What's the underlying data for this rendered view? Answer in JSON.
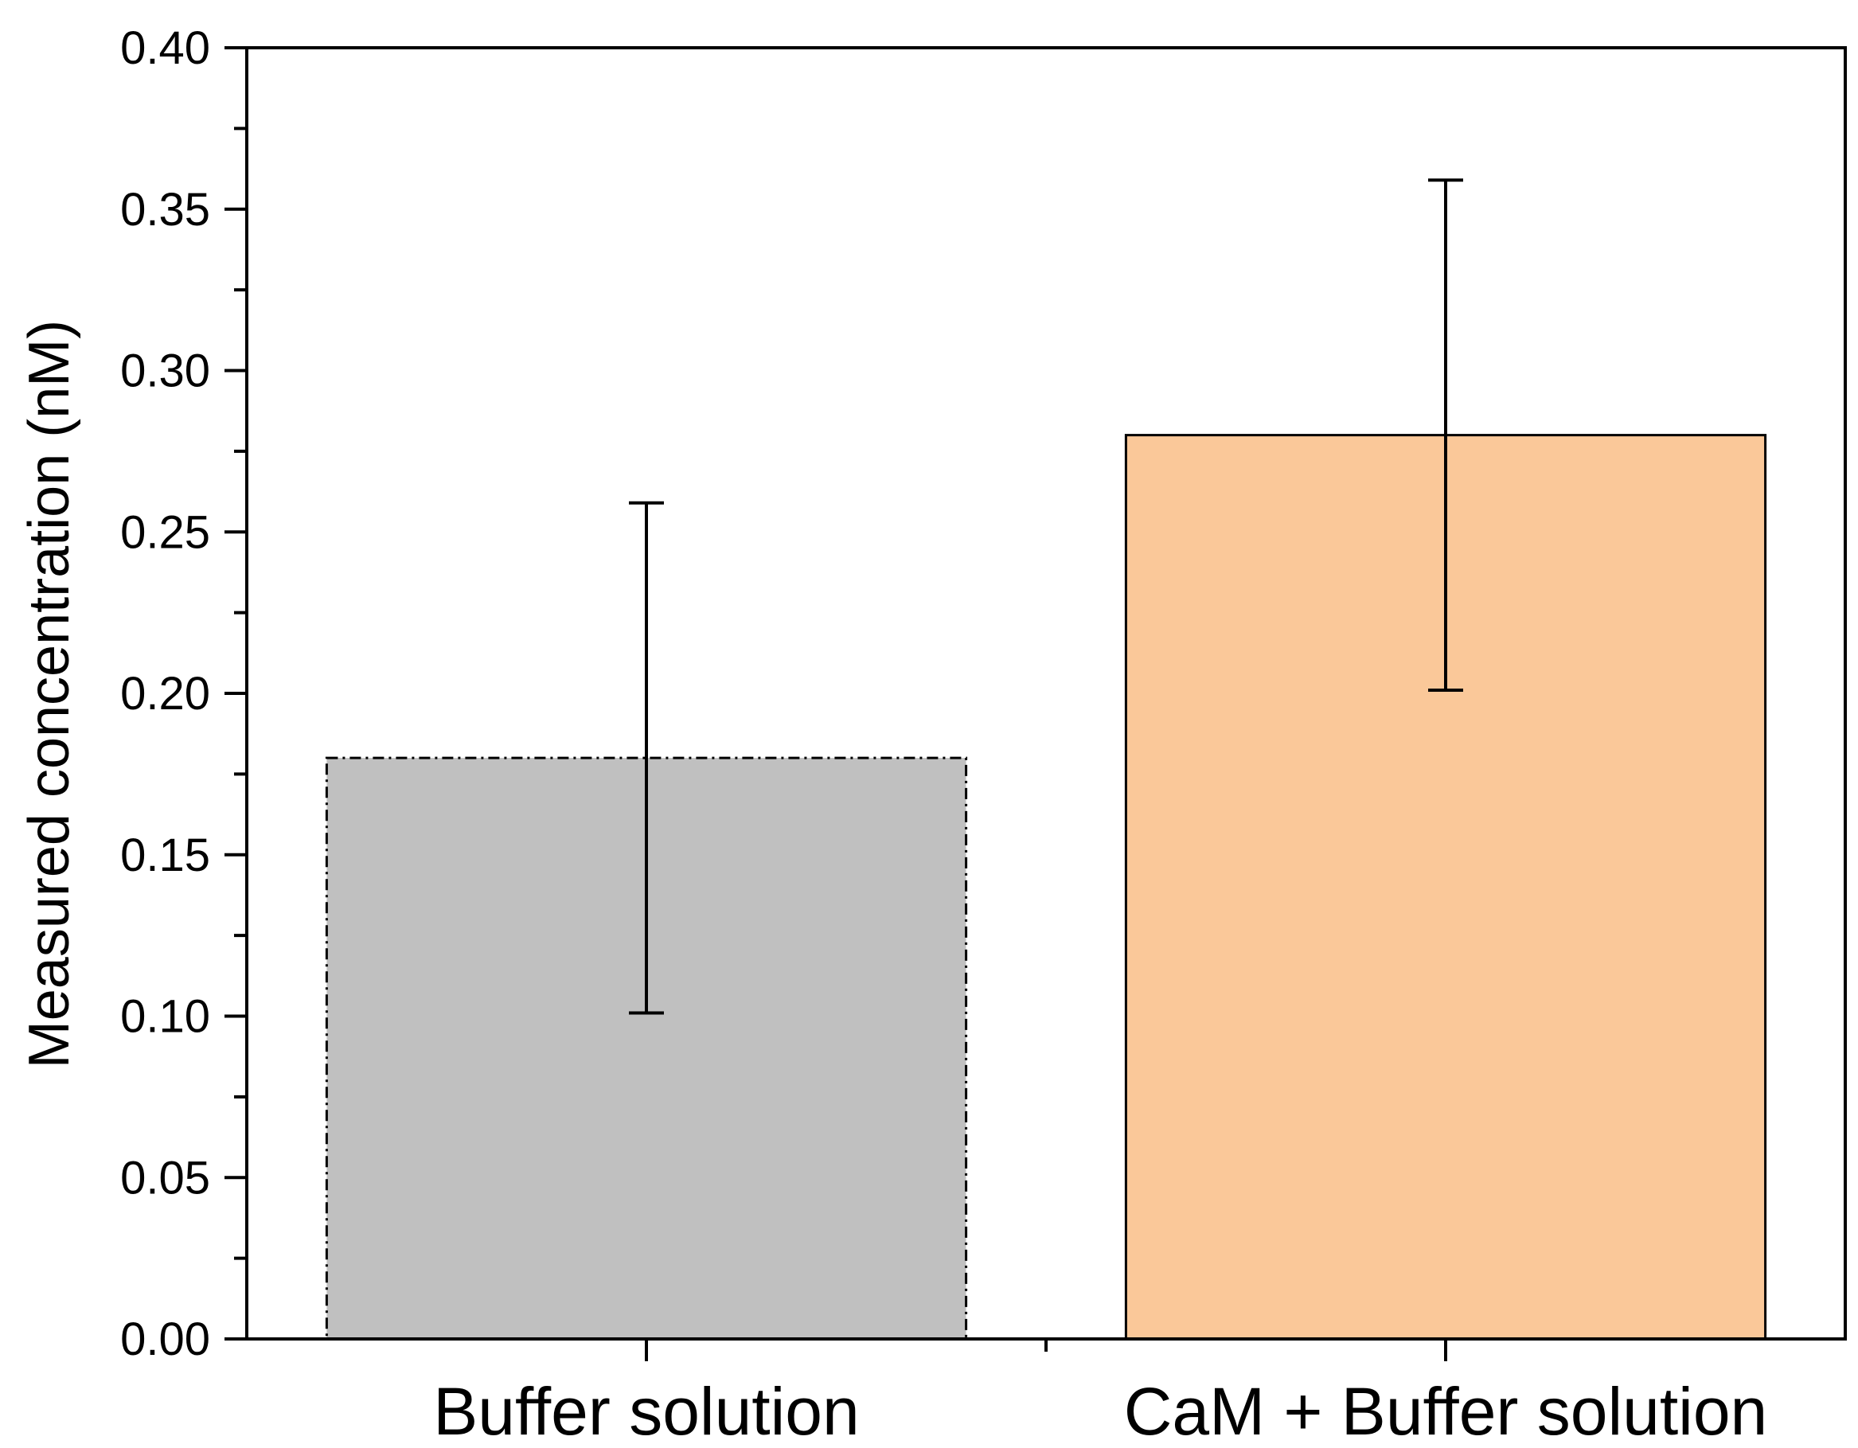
{
  "chart_data": {
    "type": "bar",
    "title": "",
    "xlabel": "",
    "ylabel": "Measured concentration (nM)",
    "ylim": [
      0,
      0.4
    ],
    "yticks": [
      "0.00",
      "0.05",
      "0.10",
      "0.15",
      "0.20",
      "0.25",
      "0.30",
      "0.35",
      "0.40"
    ],
    "ytick_values": [
      0,
      0.05,
      0.1,
      0.15,
      0.2,
      0.25,
      0.3,
      0.35,
      0.4
    ],
    "grid": false,
    "categories": [
      "Buffer solution",
      "CaM + Buffer solution"
    ],
    "values": [
      0.18,
      0.28
    ],
    "error": [
      0.079,
      0.079
    ],
    "colors": [
      "#c0c0c0",
      "#fac899"
    ],
    "edge_styles": [
      "dash-dot",
      "solid"
    ]
  }
}
